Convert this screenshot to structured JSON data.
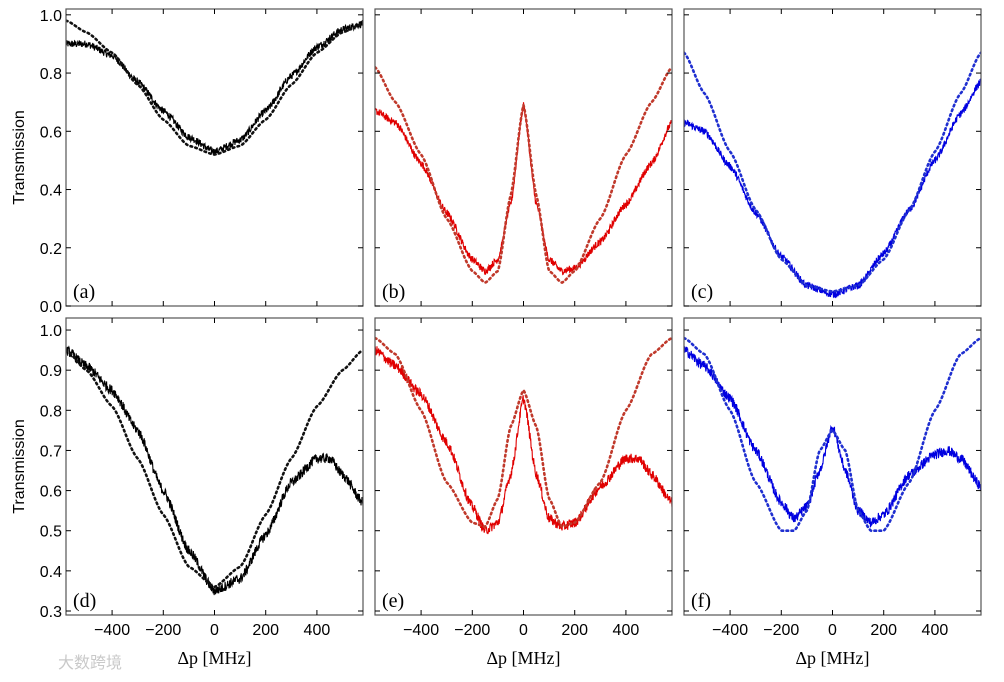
{
  "chart_data": [
    {
      "type": "line",
      "panel": "(a)",
      "color": "#000000",
      "ylabel": "Transmission",
      "xlabel": "",
      "xlim": [
        -580,
        580
      ],
      "ylim": [
        0,
        1.02
      ],
      "xticks": [
        -400,
        -200,
        0,
        200,
        400
      ],
      "yticks": [
        "0.0",
        "0.2",
        "0.4",
        "0.6",
        "0.8",
        "1.0"
      ],
      "series": [
        {
          "style": "solid",
          "x": [
            -580,
            -500,
            -400,
            -300,
            -200,
            -100,
            0,
            100,
            200,
            300,
            400,
            500,
            580
          ],
          "y": [
            0.9,
            0.9,
            0.86,
            0.77,
            0.67,
            0.58,
            0.53,
            0.57,
            0.67,
            0.79,
            0.89,
            0.95,
            0.97
          ]
        },
        {
          "style": "dotted",
          "x": [
            -580,
            -500,
            -400,
            -300,
            -200,
            -100,
            0,
            100,
            200,
            300,
            400,
            500,
            580
          ],
          "y": [
            0.98,
            0.94,
            0.87,
            0.76,
            0.64,
            0.55,
            0.52,
            0.55,
            0.64,
            0.76,
            0.87,
            0.94,
            0.97
          ]
        }
      ]
    },
    {
      "type": "line",
      "panel": "(b)",
      "color": "#e00000",
      "ylabel": "",
      "xlabel": "",
      "xlim": [
        -580,
        580
      ],
      "ylim": [
        0,
        1.02
      ],
      "xticks": [
        -400,
        -200,
        0,
        200,
        400
      ],
      "yticks": [],
      "series": [
        {
          "style": "solid",
          "x": [
            -580,
            -500,
            -400,
            -300,
            -200,
            -150,
            -100,
            -50,
            0,
            50,
            100,
            150,
            200,
            300,
            400,
            500,
            580
          ],
          "y": [
            0.67,
            0.63,
            0.49,
            0.32,
            0.16,
            0.12,
            0.16,
            0.35,
            0.69,
            0.35,
            0.16,
            0.12,
            0.13,
            0.22,
            0.35,
            0.49,
            0.63
          ]
        },
        {
          "style": "dotted",
          "x": [
            -580,
            -500,
            -400,
            -300,
            -200,
            -150,
            -100,
            -50,
            0,
            50,
            100,
            150,
            200,
            300,
            400,
            500,
            580
          ],
          "y": [
            0.82,
            0.7,
            0.52,
            0.3,
            0.12,
            0.08,
            0.12,
            0.38,
            0.69,
            0.38,
            0.12,
            0.08,
            0.12,
            0.3,
            0.52,
            0.7,
            0.82
          ]
        }
      ]
    },
    {
      "type": "line",
      "panel": "(c)",
      "color": "#0000e0",
      "ylabel": "",
      "xlabel": "",
      "xlim": [
        -580,
        580
      ],
      "ylim": [
        0,
        1.02
      ],
      "xticks": [
        -400,
        -200,
        0,
        200,
        400
      ],
      "yticks": [],
      "series": [
        {
          "style": "solid",
          "x": [
            -580,
            -500,
            -400,
            -300,
            -200,
            -100,
            0,
            100,
            200,
            300,
            400,
            500,
            580
          ],
          "y": [
            0.63,
            0.6,
            0.48,
            0.32,
            0.17,
            0.07,
            0.04,
            0.07,
            0.18,
            0.33,
            0.5,
            0.66,
            0.77
          ]
        },
        {
          "style": "dotted",
          "x": [
            -580,
            -500,
            -400,
            -300,
            -200,
            -100,
            0,
            100,
            200,
            300,
            400,
            500,
            580
          ],
          "y": [
            0.87,
            0.73,
            0.53,
            0.33,
            0.16,
            0.07,
            0.05,
            0.07,
            0.16,
            0.33,
            0.53,
            0.73,
            0.87
          ]
        }
      ]
    },
    {
      "type": "line",
      "panel": "(d)",
      "color": "#000000",
      "ylabel": "Transmission",
      "xlabel": "Δp [MHz]",
      "xlim": [
        -580,
        580
      ],
      "ylim": [
        0.29,
        1.03
      ],
      "xticks": [
        -400,
        -200,
        0,
        200,
        400
      ],
      "yticks": [
        "0.3",
        "0.4",
        "0.5",
        "0.6",
        "0.7",
        "0.8",
        "0.9",
        "1.0"
      ],
      "series": [
        {
          "style": "solid",
          "x": [
            -580,
            -500,
            -400,
            -300,
            -200,
            -100,
            0,
            100,
            200,
            300,
            400,
            450,
            500,
            580
          ],
          "y": [
            0.95,
            0.91,
            0.85,
            0.75,
            0.6,
            0.45,
            0.35,
            0.38,
            0.49,
            0.62,
            0.68,
            0.68,
            0.64,
            0.57
          ]
        },
        {
          "style": "dotted",
          "x": [
            -580,
            -500,
            -400,
            -300,
            -200,
            -100,
            0,
            100,
            200,
            300,
            400,
            500,
            580
          ],
          "y": [
            0.95,
            0.9,
            0.81,
            0.68,
            0.54,
            0.41,
            0.36,
            0.41,
            0.54,
            0.68,
            0.81,
            0.9,
            0.95
          ]
        }
      ]
    },
    {
      "type": "line",
      "panel": "(e)",
      "color": "#e00000",
      "ylabel": "",
      "xlabel": "Δp [MHz]",
      "xlim": [
        -580,
        580
      ],
      "ylim": [
        0.29,
        1.03
      ],
      "xticks": [
        -400,
        -200,
        0,
        200,
        400
      ],
      "yticks": [],
      "series": [
        {
          "style": "solid",
          "x": [
            -580,
            -500,
            -400,
            -300,
            -200,
            -150,
            -100,
            -50,
            0,
            50,
            100,
            150,
            200,
            300,
            400,
            450,
            500,
            580
          ],
          "y": [
            0.95,
            0.91,
            0.84,
            0.72,
            0.56,
            0.5,
            0.52,
            0.64,
            0.83,
            0.64,
            0.53,
            0.51,
            0.52,
            0.61,
            0.68,
            0.68,
            0.64,
            0.57
          ]
        },
        {
          "style": "dotted",
          "x": [
            -580,
            -500,
            -400,
            -300,
            -200,
            -150,
            -100,
            -50,
            0,
            50,
            100,
            150,
            200,
            300,
            400,
            500,
            580
          ],
          "y": [
            0.98,
            0.94,
            0.8,
            0.62,
            0.52,
            0.51,
            0.58,
            0.76,
            0.85,
            0.76,
            0.58,
            0.51,
            0.52,
            0.62,
            0.8,
            0.94,
            0.98
          ]
        }
      ]
    },
    {
      "type": "line",
      "panel": "(f)",
      "color": "#0000e0",
      "ylabel": "",
      "xlabel": "Δp [MHz]",
      "xlim": [
        -580,
        580
      ],
      "ylim": [
        0.29,
        1.03
      ],
      "xticks": [
        -400,
        -200,
        0,
        200,
        400
      ],
      "yticks": [],
      "series": [
        {
          "style": "solid",
          "x": [
            -580,
            -500,
            -400,
            -300,
            -200,
            -150,
            -100,
            -50,
            0,
            50,
            100,
            150,
            200,
            300,
            400,
            450,
            500,
            580
          ],
          "y": [
            0.95,
            0.91,
            0.83,
            0.7,
            0.57,
            0.53,
            0.56,
            0.65,
            0.76,
            0.65,
            0.55,
            0.52,
            0.54,
            0.64,
            0.69,
            0.7,
            0.68,
            0.61
          ]
        },
        {
          "style": "dotted",
          "x": [
            -580,
            -500,
            -400,
            -300,
            -200,
            -150,
            -100,
            -50,
            0,
            50,
            100,
            150,
            200,
            300,
            400,
            500,
            580
          ],
          "y": [
            0.98,
            0.94,
            0.8,
            0.62,
            0.5,
            0.5,
            0.55,
            0.7,
            0.75,
            0.7,
            0.55,
            0.5,
            0.5,
            0.62,
            0.8,
            0.94,
            0.98
          ]
        }
      ]
    }
  ],
  "watermark": "大数跨境"
}
